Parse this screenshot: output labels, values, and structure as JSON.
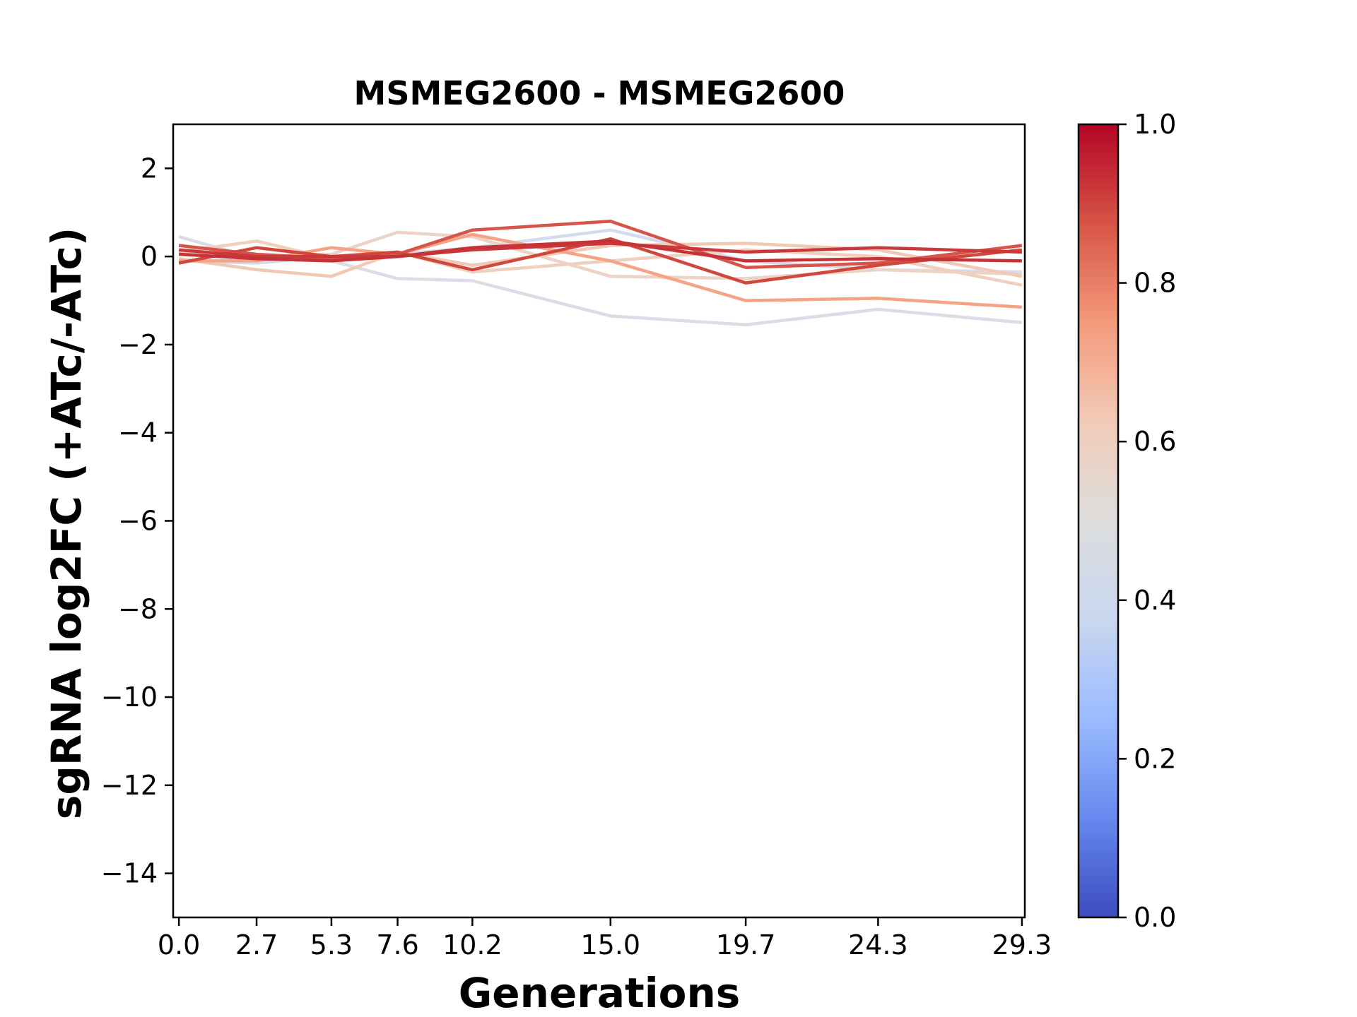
{
  "chart_data": {
    "type": "line",
    "title": "MSMEG2600 - MSMEG2600",
    "xlabel": "Generations",
    "ylabel": "sgRNA log2FC (+ATc/-ATc)",
    "x": [
      0.0,
      2.7,
      5.3,
      7.6,
      10.2,
      15.0,
      19.7,
      24.3,
      29.3
    ],
    "x_tick_labels": [
      "0.0",
      "2.7",
      "5.3",
      "7.6",
      "10.2",
      "15.0",
      "19.7",
      "24.3",
      "29.3"
    ],
    "xlim": [
      -0.2,
      29.4
    ],
    "ylim": [
      -15,
      3
    ],
    "y_ticks": [
      2,
      0,
      -2,
      -4,
      -6,
      -8,
      -10,
      -12,
      -14
    ],
    "y_tick_labels": [
      "2",
      "0",
      "−2",
      "−4",
      "−6",
      "−8",
      "−10",
      "−12",
      "−14"
    ],
    "grid": false,
    "colormap": "coolwarm",
    "colorbar": {
      "min": 0.0,
      "max": 1.0,
      "ticks": [
        0.0,
        0.2,
        0.4,
        0.6,
        0.8,
        1.0
      ],
      "tick_labels": [
        "0.0",
        "0.2",
        "0.4",
        "0.6",
        "0.8",
        "1.0"
      ],
      "stops": [
        "#3b4cc0",
        "#6788ee",
        "#9abbff",
        "#c9d7f0",
        "#dddddd",
        "#f2cbb7",
        "#f49a7b",
        "#d75445",
        "#b40426"
      ]
    },
    "series": [
      {
        "color_value": 0.48,
        "color": "#dcdce6",
        "values": [
          0.45,
          -0.05,
          -0.1,
          -0.5,
          -0.55,
          -1.35,
          -1.55,
          -1.2,
          -1.5
        ]
      },
      {
        "color_value": 0.45,
        "color": "#d5dbee",
        "values": [
          -0.1,
          -0.15,
          0.0,
          0.05,
          0.2,
          0.6,
          -0.1,
          -0.3,
          -0.35
        ]
      },
      {
        "color_value": 0.55,
        "color": "#ecd3c5",
        "values": [
          0.1,
          0.0,
          0.05,
          0.55,
          0.45,
          -0.45,
          -0.5,
          -0.3,
          -0.4
        ]
      },
      {
        "color_value": 0.58,
        "color": "#efcfbd",
        "values": [
          0.1,
          0.35,
          -0.05,
          0.1,
          -0.35,
          -0.1,
          0.15,
          0.0,
          -0.65
        ]
      },
      {
        "color_value": 0.6,
        "color": "#f0c9b5",
        "values": [
          -0.05,
          -0.3,
          -0.45,
          0.1,
          -0.2,
          0.25,
          0.3,
          0.15,
          -0.45
        ]
      },
      {
        "color_value": 0.72,
        "color": "#f4a484",
        "values": [
          -0.1,
          -0.1,
          0.2,
          0.05,
          0.5,
          -0.1,
          -1.0,
          -0.95,
          -1.15
        ]
      },
      {
        "color_value": 0.88,
        "color": "#d6544a",
        "values": [
          0.25,
          0.05,
          -0.05,
          0.05,
          0.6,
          0.8,
          -0.25,
          -0.15,
          0.25
        ]
      },
      {
        "color_value": 0.9,
        "color": "#d0473d",
        "values": [
          -0.15,
          0.2,
          0.0,
          0.1,
          -0.3,
          0.4,
          -0.6,
          -0.2,
          0.15
        ]
      },
      {
        "color_value": 0.92,
        "color": "#c9383a",
        "values": [
          0.15,
          0.0,
          0.0,
          0.0,
          0.15,
          0.3,
          0.1,
          0.2,
          0.1
        ]
      },
      {
        "color_value": 0.93,
        "color": "#c63336",
        "values": [
          0.05,
          -0.05,
          -0.1,
          0.0,
          0.2,
          0.35,
          -0.1,
          -0.05,
          -0.1
        ]
      }
    ]
  }
}
